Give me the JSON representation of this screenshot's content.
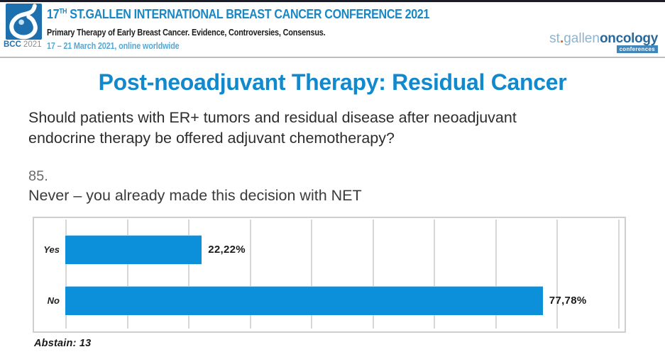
{
  "header": {
    "badge": {
      "bcc": "BCC",
      "year": "2021"
    },
    "title": {
      "prefix": "17",
      "sup": "TH",
      "rest": " ST.GALLEN INTERNATIONAL BREAST CANCER CONFERENCE 2021"
    },
    "subtitle": "Primary Therapy of Early Breast Cancer. Evidence, Controversies, Consensus.",
    "dates": "17 – 21 March 2021, online worldwide",
    "brand": {
      "st": "st",
      "dot": ".",
      "gallen": "gallen",
      "oncology": "oncology",
      "conferences": "conferences"
    }
  },
  "slide": {
    "title": "Post-neoadjuvant Therapy: Residual Cancer",
    "question_line1": "Should patients with ER+ tumors and residual disease after neoadjuvant",
    "question_line2": "endocrine therapy be offered adjuvant chemotherapy?",
    "item_number": "85.",
    "statement": "Never – you already made this decision with NET",
    "abstain_label": "Abstain: 13"
  },
  "chart_data": {
    "type": "bar",
    "orientation": "horizontal",
    "title": "",
    "categories": [
      "Yes",
      "No"
    ],
    "values": [
      22.22,
      77.78
    ],
    "value_labels": [
      "22,22%",
      "77,78%"
    ],
    "xlim": [
      0,
      100
    ],
    "gridline_interval": 10,
    "grid": true,
    "legend": false,
    "bar_color": "#0c90da",
    "abstain_count": 13
  },
  "colors": {
    "header_blue": "#1787c6",
    "date_blue": "#58a8d2",
    "title_blue": "#1289cc",
    "bar_blue": "#0c90da",
    "brand_light_blue": "#8fb3cc",
    "brand_dark_blue": "#2a6899",
    "brand_orange": "#d06a1d"
  }
}
